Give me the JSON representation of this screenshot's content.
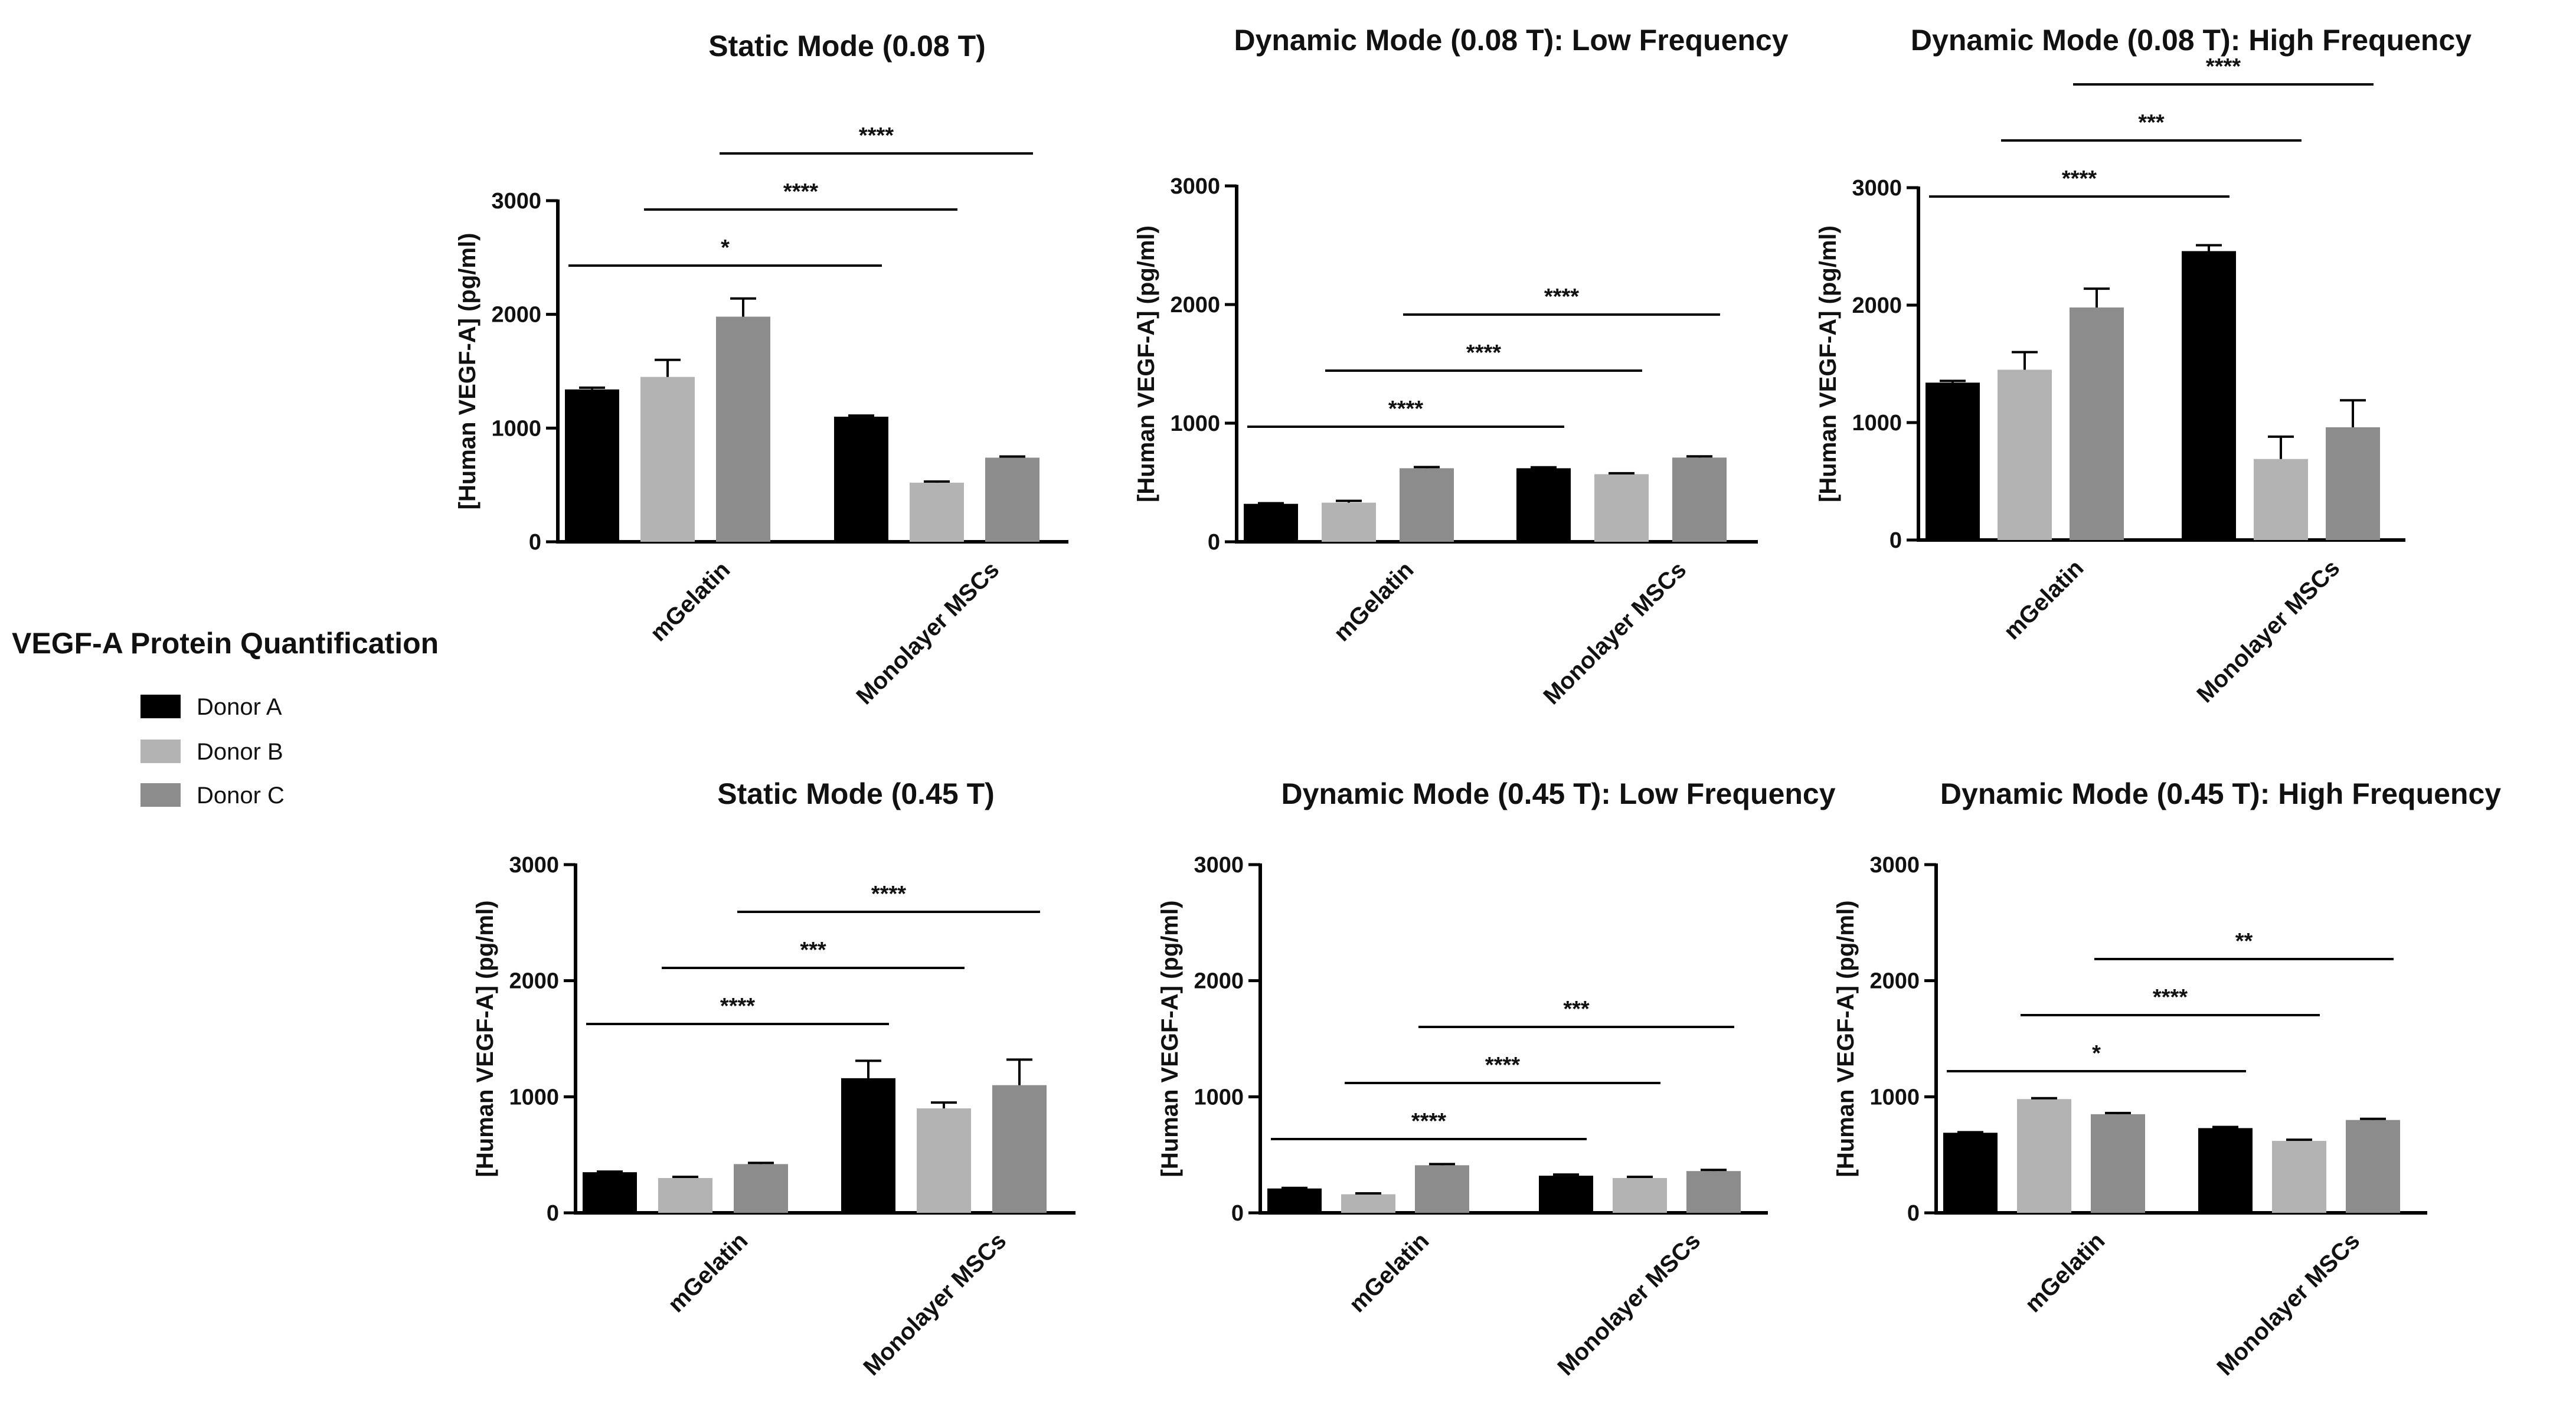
{
  "legend": {
    "title": "VEGF-A Protein Quantification",
    "entries": [
      {
        "name": "Donor A",
        "color": "#000000"
      },
      {
        "name": "Donor B",
        "color": "#b3b3b3"
      },
      {
        "name": "Donor C",
        "color": "#8c8c8c"
      }
    ]
  },
  "chart_data": [
    {
      "type": "bar",
      "title": "Static Mode (0.08 T)",
      "ylabel": "[Human VEGF-A] (pg/ml)",
      "ylim": [
        0,
        3000
      ],
      "yticks": [
        "0",
        "1000",
        "2000",
        "3000"
      ],
      "categories": [
        "mGelatin",
        "Monolayer MSCs"
      ],
      "series": [
        {
          "name": "Donor A",
          "values": [
            1340,
            1100
          ],
          "errors": [
            15,
            10
          ]
        },
        {
          "name": "Donor B",
          "values": [
            1450,
            520
          ],
          "errors": [
            150,
            10
          ]
        },
        {
          "name": "Donor C",
          "values": [
            1980,
            740
          ],
          "errors": [
            160,
            10
          ]
        }
      ],
      "significance": [
        {
          "from": "mGelatin Donor A",
          "to": "Monolayer MSCs Donor A",
          "label": "*"
        },
        {
          "from": "mGelatin Donor B",
          "to": "Monolayer MSCs Donor B",
          "label": "****"
        },
        {
          "from": "mGelatin Donor C",
          "to": "Monolayer MSCs Donor C",
          "label": "****"
        }
      ]
    },
    {
      "type": "bar",
      "title": "Dynamic  Mode  (0.08 T): Low  Frequency",
      "ylabel": "[Human VEGF-A] (pg/ml)",
      "ylim": [
        0,
        3000
      ],
      "yticks": [
        "0",
        "1000",
        "2000",
        "3000"
      ],
      "categories": [
        "mGelatin",
        "Monolayer MSCs"
      ],
      "series": [
        {
          "name": "Donor A",
          "values": [
            320,
            620
          ],
          "errors": [
            5,
            8
          ]
        },
        {
          "name": "Donor B",
          "values": [
            330,
            570
          ],
          "errors": [
            15,
            8
          ]
        },
        {
          "name": "Donor C",
          "values": [
            620,
            710
          ],
          "errors": [
            10,
            10
          ]
        }
      ],
      "significance": [
        {
          "from": "mGelatin Donor A",
          "to": "Monolayer MSCs Donor A",
          "label": "****"
        },
        {
          "from": "mGelatin Donor B",
          "to": "Monolayer MSCs Donor B",
          "label": "****"
        },
        {
          "from": "mGelatin Donor C",
          "to": "Monolayer MSCs Donor C",
          "label": "****"
        }
      ]
    },
    {
      "type": "bar",
      "title": "Dynamic  Mode  (0.08 T): High Frequency",
      "ylabel": "[Human VEGF-A] (pg/ml)",
      "ylim": [
        0,
        3000
      ],
      "yticks": [
        "0",
        "1000",
        "2000",
        "3000"
      ],
      "categories": [
        "mGelatin",
        "Monolayer MSCs"
      ],
      "series": [
        {
          "name": "Donor A",
          "values": [
            1340,
            2460
          ],
          "errors": [
            15,
            50
          ]
        },
        {
          "name": "Donor B",
          "values": [
            1450,
            690
          ],
          "errors": [
            150,
            190
          ]
        },
        {
          "name": "Donor C",
          "values": [
            1980,
            960
          ],
          "errors": [
            160,
            230
          ]
        }
      ],
      "significance": [
        {
          "from": "mGelatin Donor A",
          "to": "Monolayer MSCs Donor A",
          "label": "****"
        },
        {
          "from": "mGelatin Donor B",
          "to": "Monolayer MSCs Donor B",
          "label": "***"
        },
        {
          "from": "mGelatin Donor C",
          "to": "Monolayer MSCs Donor C",
          "label": "****"
        }
      ]
    },
    {
      "type": "bar",
      "title": "Static Mode (0.45 T)",
      "ylabel": "[Human VEGF-A] (pg/ml)",
      "ylim": [
        0,
        3000
      ],
      "yticks": [
        "0",
        "1000",
        "2000",
        "3000"
      ],
      "categories": [
        "mGelatin",
        "Monolayer MSCs"
      ],
      "series": [
        {
          "name": "Donor A",
          "values": [
            350,
            1160
          ],
          "errors": [
            5,
            150
          ]
        },
        {
          "name": "Donor B",
          "values": [
            300,
            900
          ],
          "errors": [
            10,
            50
          ]
        },
        {
          "name": "Donor C",
          "values": [
            420,
            1100
          ],
          "errors": [
            10,
            220
          ]
        }
      ],
      "significance": [
        {
          "from": "mGelatin Donor A",
          "to": "Monolayer MSCs Donor A",
          "label": "****"
        },
        {
          "from": "mGelatin Donor B",
          "to": "Monolayer MSCs Donor B",
          "label": "***"
        },
        {
          "from": "mGelatin Donor C",
          "to": "Monolayer MSCs Donor C",
          "label": "****"
        }
      ]
    },
    {
      "type": "bar",
      "title": "Dynamic  Mode (0.45 T): Low Frequency",
      "ylabel": "[Human VEGF-A] (pg/ml)",
      "ylim": [
        0,
        3000
      ],
      "yticks": [
        "0",
        "1000",
        "2000",
        "3000"
      ],
      "categories": [
        "mGelatin",
        "Monolayer MSCs"
      ],
      "series": [
        {
          "name": "Donor A",
          "values": [
            210,
            320
          ],
          "errors": [
            5,
            10
          ]
        },
        {
          "name": "Donor B",
          "values": [
            160,
            300
          ],
          "errors": [
            8,
            10
          ]
        },
        {
          "name": "Donor C",
          "values": [
            410,
            360
          ],
          "errors": [
            10,
            10
          ]
        }
      ],
      "significance": [
        {
          "from": "mGelatin Donor A",
          "to": "Monolayer MSCs Donor A",
          "label": "****"
        },
        {
          "from": "mGelatin Donor B",
          "to": "Monolayer MSCs Donor B",
          "label": "****"
        },
        {
          "from": "mGelatin Donor C",
          "to": "Monolayer MSCs Donor C",
          "label": "***"
        }
      ]
    },
    {
      "type": "bar",
      "title": "Dynamic  Mode (0.45 T): High Frequency",
      "ylabel": "[Human VEGF-A] (pg/ml)",
      "ylim": [
        0,
        3000
      ],
      "yticks": [
        "0",
        "1000",
        "2000",
        "3000"
      ],
      "categories": [
        "mGelatin",
        "Monolayer MSCs"
      ],
      "series": [
        {
          "name": "Donor A",
          "values": [
            690,
            730
          ],
          "errors": [
            5,
            10
          ]
        },
        {
          "name": "Donor B",
          "values": [
            980,
            620
          ],
          "errors": [
            8,
            10
          ]
        },
        {
          "name": "Donor C",
          "values": [
            850,
            800
          ],
          "errors": [
            10,
            10
          ]
        }
      ],
      "significance": [
        {
          "from": "mGelatin Donor A",
          "to": "Monolayer MSCs Donor A",
          "label": "*"
        },
        {
          "from": "mGelatin Donor B",
          "to": "Monolayer MSCs Donor B",
          "label": "****"
        },
        {
          "from": "mGelatin Donor C",
          "to": "Monolayer MSCs Donor C",
          "label": "**"
        }
      ]
    }
  ]
}
